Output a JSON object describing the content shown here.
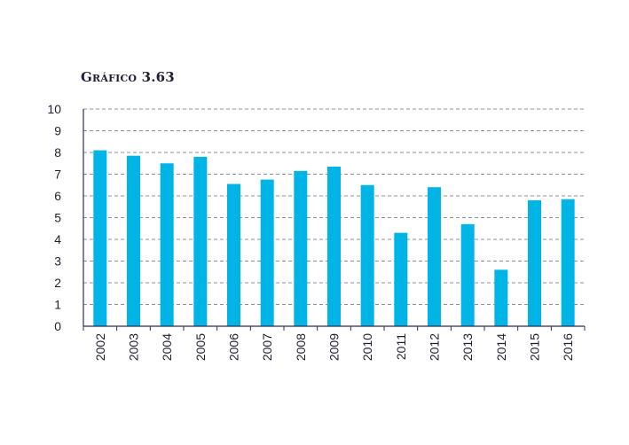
{
  "title": "Gráfico 3.63",
  "colors": {
    "bar": "#00b4e6",
    "axis": "#2e2e5a",
    "grid": "#6a6a8e",
    "text": "#1f1f33"
  },
  "chart_data": {
    "type": "bar",
    "title": "Gráfico 3.63",
    "xlabel": "",
    "ylabel": "",
    "categories": [
      "2002",
      "2003",
      "2004",
      "2005",
      "2006",
      "2007",
      "2008",
      "2009",
      "2010",
      "2011",
      "2012",
      "2013",
      "2014",
      "2015",
      "2016"
    ],
    "values": [
      8.1,
      7.85,
      7.5,
      7.8,
      6.55,
      6.75,
      7.15,
      7.35,
      6.5,
      4.3,
      6.4,
      4.7,
      2.6,
      5.8,
      5.85
    ],
    "ylim": [
      0,
      10
    ],
    "yticks": [
      "0",
      "1",
      "2",
      "3",
      "4",
      "5",
      "6",
      "7",
      "8",
      "9",
      "10"
    ],
    "grid": true,
    "grid_style": "dashed",
    "legend": "none"
  }
}
